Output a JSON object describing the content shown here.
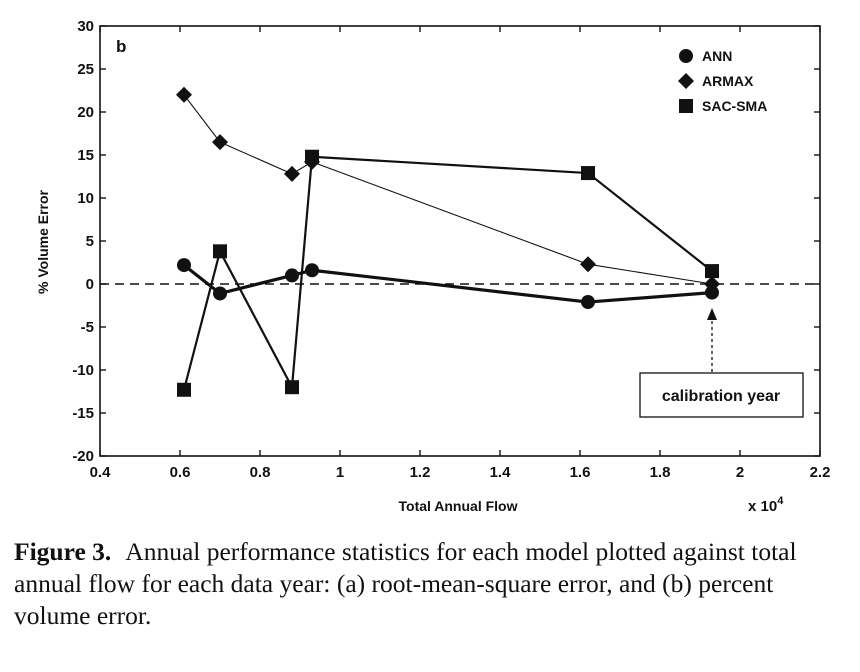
{
  "chart_data": {
    "type": "line",
    "panel_label": "b",
    "xlabel": "Total Annual Flow",
    "x_multiplier": "x 10",
    "x_multiplier_exp": "4",
    "ylabel": "% Volume Error",
    "xlim": [
      0.4,
      2.2
    ],
    "ylim": [
      -20,
      30
    ],
    "xticks": [
      "0.4",
      "0.6",
      "0.8",
      "1",
      "1.2",
      "1.4",
      "1.6",
      "1.8",
      "2",
      "2.2"
    ],
    "yticks": [
      "30",
      "25",
      "20",
      "15",
      "10",
      "5",
      "0",
      "-5",
      "-10",
      "-15",
      "-20"
    ],
    "grid": false,
    "legend_position": "top-right",
    "reference_line": {
      "y": 0,
      "style": "dashed"
    },
    "series": [
      {
        "name": "ANN",
        "marker": "circle",
        "x": [
          0.61,
          0.7,
          0.88,
          0.93,
          1.62,
          1.93
        ],
        "y": [
          2.2,
          -1.1,
          1.0,
          1.6,
          -2.1,
          -1.0
        ]
      },
      {
        "name": "ARMAX",
        "marker": "diamond",
        "x": [
          0.61,
          0.7,
          0.88,
          0.93,
          1.62,
          1.93
        ],
        "y": [
          22.0,
          16.5,
          12.8,
          14.2,
          2.3,
          0.0
        ]
      },
      {
        "name": "SAC-SMA",
        "marker": "square",
        "x": [
          0.61,
          0.7,
          0.88,
          0.93,
          1.62,
          1.93
        ],
        "y": [
          -12.3,
          3.8,
          -12.0,
          14.8,
          12.9,
          1.5
        ]
      }
    ],
    "annotation": {
      "text": "calibration year",
      "x": 1.93
    }
  },
  "caption": {
    "label": "Figure 3.",
    "text": "Annual performance statistics for each model plotted against total annual flow for each data year: (a) root-mean-square error, and (b) percent volume error."
  }
}
